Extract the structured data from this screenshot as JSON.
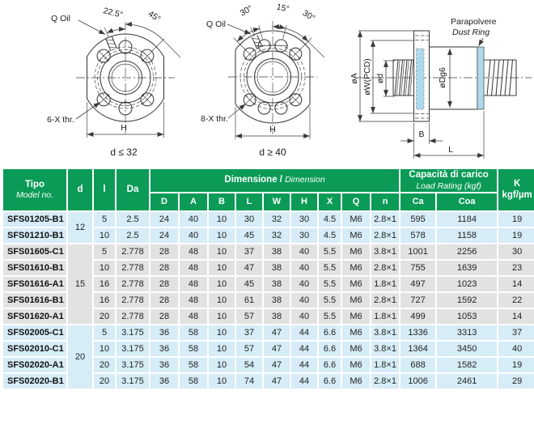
{
  "colors": {
    "header_green": "#0B9B57",
    "row_blue": "#D6ECF7",
    "row_gray": "#E2E2E2",
    "dust_ring_blue": "#ADD9EC",
    "line": "#3A3A3A"
  },
  "drawings": {
    "front_view_small": {
      "oil_label": "Q Oil",
      "angle_labels": [
        "22.5°",
        "45°"
      ],
      "thread_label": "6-X thr.",
      "width_label": "H",
      "caption": "d ≤ 32"
    },
    "front_view_large": {
      "oil_label": "Q Oil",
      "angle_labels": [
        "30°",
        "15°",
        "30°"
      ],
      "thread_label": "8-X thr.",
      "width_label": "H",
      "caption": "d ≥ 40"
    },
    "side_view": {
      "dust_ring_label_it": "Parapolvere",
      "dust_ring_label_en": "Dust Ring",
      "dim_a": "øA",
      "dim_w": "øW(PCD)",
      "dim_d": "ød",
      "dim_dg6": "øDg6",
      "dim_b": "B",
      "dim_l": "L"
    }
  },
  "table": {
    "header": {
      "tipo": "Tipo",
      "model_no": "Model no.",
      "d": "d",
      "l": "l",
      "da": "Da",
      "dimension_it": "Dimensione /",
      "dimension_en": "Dimension",
      "dim_cols": [
        "D",
        "A",
        "B",
        "L",
        "W",
        "H",
        "X",
        "Q",
        "n"
      ],
      "load_it": "Capacità di carico",
      "load_en": "Load Rating (kgf)",
      "load_cols": [
        "Ca",
        "Coa"
      ],
      "k": "K",
      "k_unit": "kgf/µm"
    },
    "groups": [
      {
        "d": "12",
        "tone": "blue",
        "rows": [
          {
            "model": "SFS01205-B1",
            "l": "5",
            "da": "2.5",
            "D": "24",
            "A": "40",
            "B": "10",
            "L": "30",
            "W": "32",
            "H": "30",
            "X": "4.5",
            "Q": "M6",
            "n": "2.8×1",
            "ca": "595",
            "coa": "1184",
            "k": "19"
          },
          {
            "model": "SFS01210-B1",
            "l": "10",
            "da": "2.5",
            "D": "24",
            "A": "40",
            "B": "10",
            "L": "45",
            "W": "32",
            "H": "30",
            "X": "4.5",
            "Q": "M6",
            "n": "2.8×1",
            "ca": "578",
            "coa": "1158",
            "k": "19"
          }
        ]
      },
      {
        "d": "15",
        "tone": "gray",
        "rows": [
          {
            "model": "SFS01605-C1",
            "l": "5",
            "da": "2.778",
            "D": "28",
            "A": "48",
            "B": "10",
            "L": "37",
            "W": "38",
            "H": "40",
            "X": "5.5",
            "Q": "M6",
            "n": "3.8×1",
            "ca": "1001",
            "coa": "2256",
            "k": "30"
          },
          {
            "model": "SFS01610-B1",
            "l": "10",
            "da": "2.778",
            "D": "28",
            "A": "48",
            "B": "10",
            "L": "47",
            "W": "38",
            "H": "40",
            "X": "5.5",
            "Q": "M6",
            "n": "2.8×1",
            "ca": "755",
            "coa": "1639",
            "k": "23"
          },
          {
            "model": "SFS01616-A1",
            "l": "16",
            "da": "2.778",
            "D": "28",
            "A": "48",
            "B": "10",
            "L": "45",
            "W": "38",
            "H": "40",
            "X": "5.5",
            "Q": "M6",
            "n": "1.8×1",
            "ca": "497",
            "coa": "1023",
            "k": "14"
          },
          {
            "model": "SFS01616-B1",
            "l": "16",
            "da": "2.778",
            "D": "28",
            "A": "48",
            "B": "10",
            "L": "61",
            "W": "38",
            "H": "40",
            "X": "5.5",
            "Q": "M6",
            "n": "2.8×1",
            "ca": "727",
            "coa": "1592",
            "k": "22"
          },
          {
            "model": "SFS01620-A1",
            "l": "20",
            "da": "2.778",
            "D": "28",
            "A": "48",
            "B": "10",
            "L": "57",
            "W": "38",
            "H": "40",
            "X": "5.5",
            "Q": "M6",
            "n": "1.8×1",
            "ca": "499",
            "coa": "1053",
            "k": "14"
          }
        ]
      },
      {
        "d": "20",
        "tone": "blue",
        "rows": [
          {
            "model": "SFS02005-C1",
            "l": "5",
            "da": "3.175",
            "D": "36",
            "A": "58",
            "B": "10",
            "L": "37",
            "W": "47",
            "H": "44",
            "X": "6.6",
            "Q": "M6",
            "n": "3.8×1",
            "ca": "1336",
            "coa": "3313",
            "k": "37"
          },
          {
            "model": "SFS02010-C1",
            "l": "10",
            "da": "3.175",
            "D": "36",
            "A": "58",
            "B": "10",
            "L": "57",
            "W": "47",
            "H": "44",
            "X": "6.6",
            "Q": "M6",
            "n": "3.8×1",
            "ca": "1364",
            "coa": "3450",
            "k": "40"
          },
          {
            "model": "SFS02020-A1",
            "l": "20",
            "da": "3.175",
            "D": "36",
            "A": "58",
            "B": "10",
            "L": "54",
            "W": "47",
            "H": "44",
            "X": "6.6",
            "Q": "M6",
            "n": "1.8×1",
            "ca": "688",
            "coa": "1582",
            "k": "19"
          },
          {
            "model": "SFS02020-B1",
            "l": "20",
            "da": "3.175",
            "D": "36",
            "A": "58",
            "B": "10",
            "L": "74",
            "W": "47",
            "H": "44",
            "X": "6.6",
            "Q": "M6",
            "n": "2.8×1",
            "ca": "1006",
            "coa": "2461",
            "k": "29"
          }
        ]
      }
    ]
  }
}
